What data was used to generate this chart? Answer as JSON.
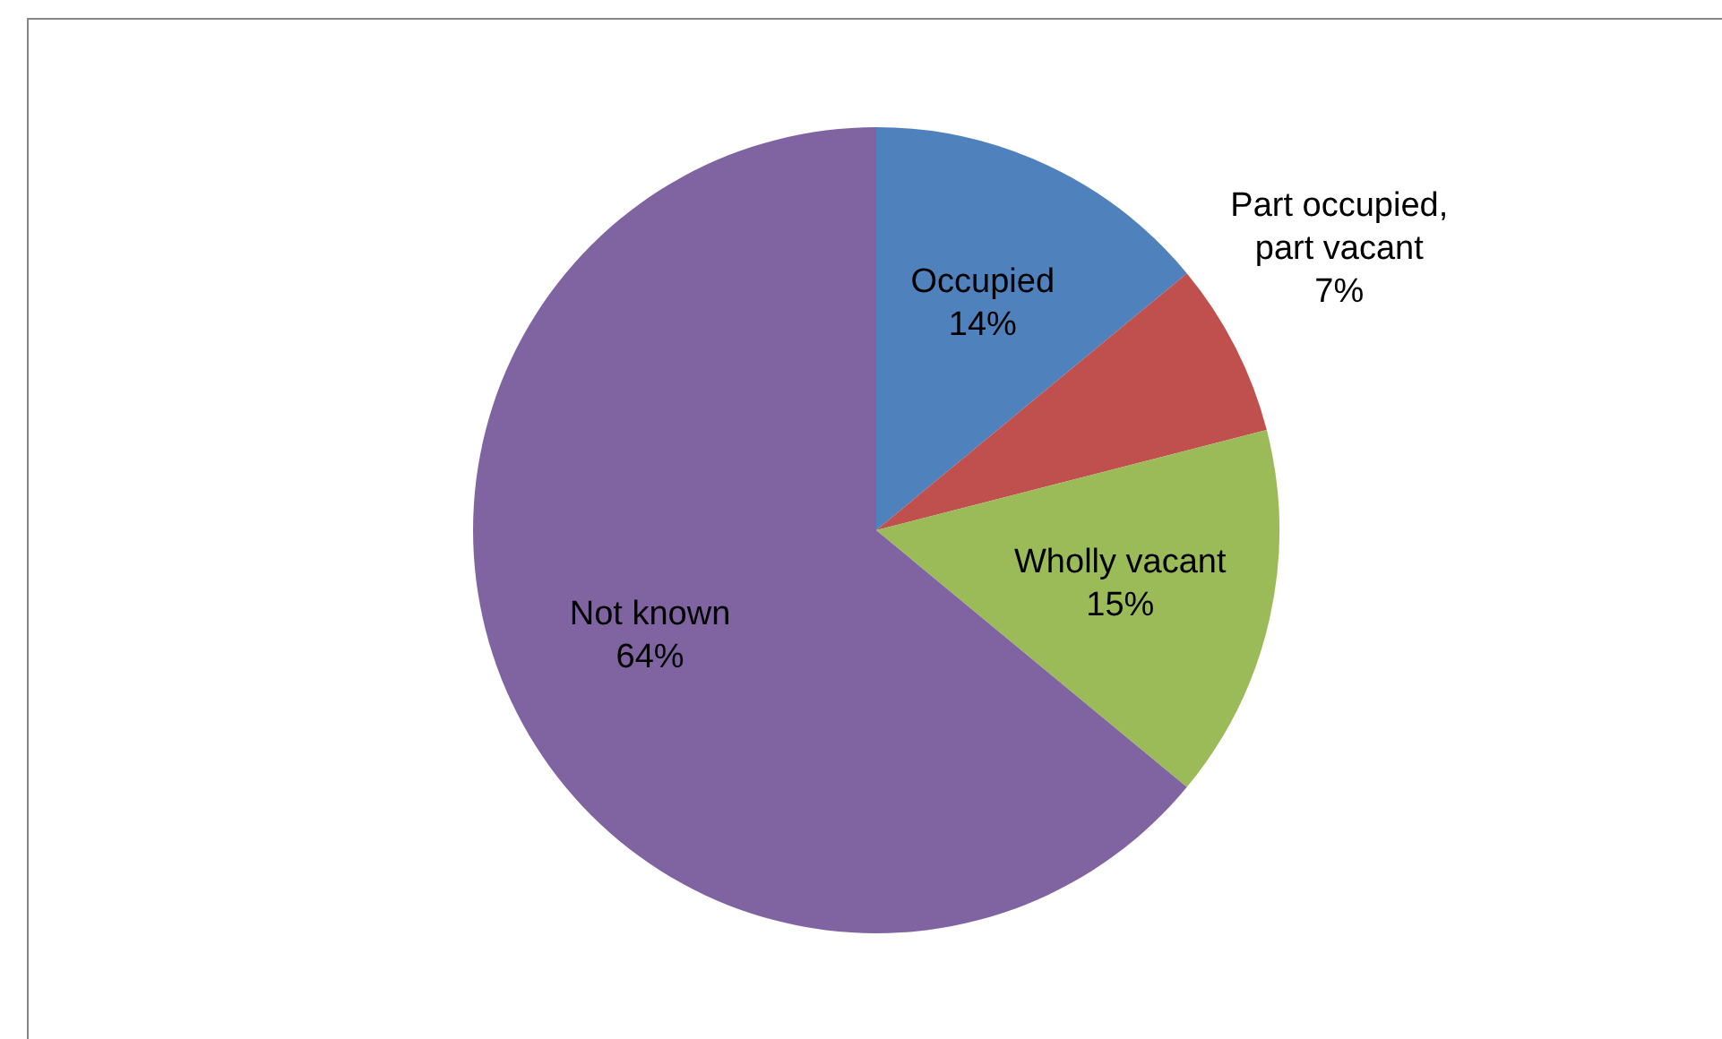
{
  "chart_data": {
    "type": "pie",
    "categories": [
      "Occupied",
      "Part occupied, part vacant",
      "Wholly vacant",
      "Not known"
    ],
    "values": [
      14,
      7,
      15,
      64
    ],
    "colors": [
      "#4f81bd",
      "#c0504d",
      "#9bbb59",
      "#8064a2"
    ],
    "value_labels": [
      "14%",
      "7%",
      "15%",
      "64%"
    ],
    "legend": false
  }
}
